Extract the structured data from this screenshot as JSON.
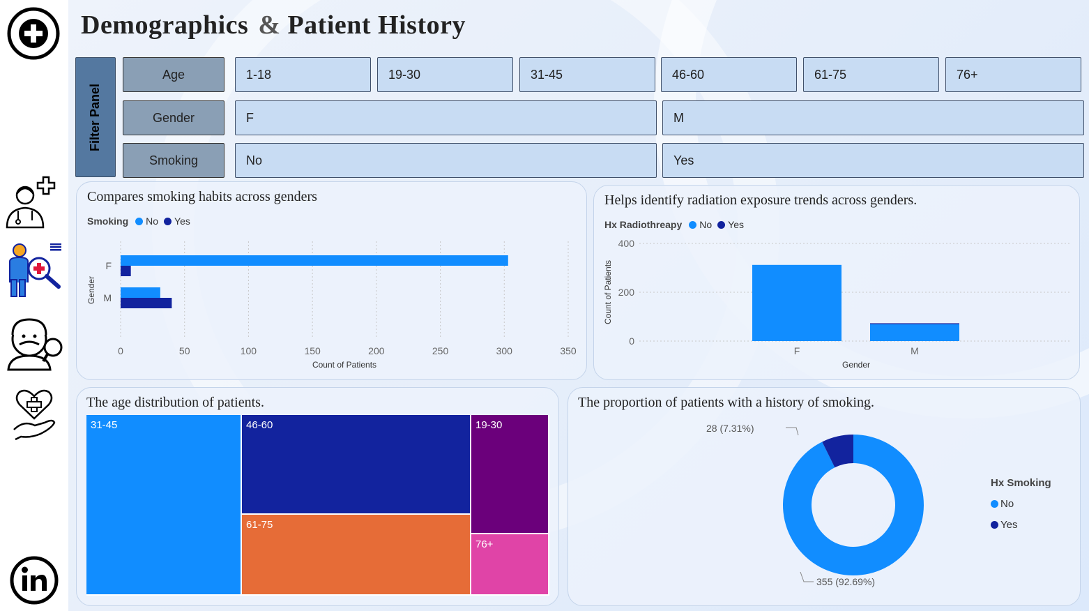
{
  "header": {
    "title_left": "Demographics",
    "title_amp": "&",
    "title_right": "Patient History"
  },
  "sidebar": {
    "icons": [
      "plus-circle-icon",
      "doctor-icon",
      "patient-search-icon",
      "elder-search-icon",
      "heart-hand-icon",
      "linkedin-icon"
    ]
  },
  "filters": {
    "panel_label": "Filter Panel",
    "age": {
      "label": "Age",
      "options": [
        "1-18",
        "19-30",
        "31-45",
        "46-60",
        "61-75",
        "76+"
      ]
    },
    "gender": {
      "label": "Gender",
      "options": [
        "F",
        "M"
      ]
    },
    "smoking": {
      "label": "Smoking",
      "options": [
        "No",
        "Yes"
      ]
    }
  },
  "colors": {
    "no": "#118dff",
    "yes": "#12239e",
    "orange": "#e66c37",
    "purple": "#6b007b",
    "pink": "#e044a7"
  },
  "smoking_gender": {
    "title": "Compares smoking habits across genders",
    "legend_title": "Smoking",
    "legend": [
      "No",
      "Yes"
    ],
    "chart_data": {
      "type": "bar",
      "orientation": "horizontal",
      "categories": [
        "F",
        "M"
      ],
      "series": [
        {
          "name": "No",
          "values": [
            303,
            31
          ]
        },
        {
          "name": "Yes",
          "values": [
            8,
            40
          ]
        }
      ],
      "xlabel": "Count of Patients",
      "ylabel": "Gender",
      "xlim": [
        0,
        350
      ],
      "xticks": [
        "0",
        "50",
        "100",
        "150",
        "200",
        "250",
        "300",
        "350"
      ]
    }
  },
  "radiation_gender": {
    "title": "Helps identify radiation exposure trends across genders.",
    "legend_title": "Hx Radiothreapy",
    "legend": [
      "No",
      "Yes"
    ],
    "chart_data": {
      "type": "bar",
      "stacked": true,
      "categories": [
        "F",
        "M"
      ],
      "series": [
        {
          "name": "No",
          "values": [
            312,
            69
          ]
        },
        {
          "name": "Yes",
          "values": [
            0,
            4
          ]
        }
      ],
      "xlabel": "Gender",
      "ylabel": "Count of Patients",
      "ylim": [
        0,
        400
      ],
      "yticks": [
        "0",
        "200",
        "400"
      ]
    }
  },
  "age_distribution": {
    "title": "The age distribution of patients.",
    "chart_data": {
      "type": "treemap",
      "categories": [
        "31-45",
        "46-60",
        "61-75",
        "19-30",
        "76+"
      ]
    }
  },
  "smoking_history": {
    "title": "The proportion of patients with a history of smoking.",
    "legend_title": "Hx Smoking",
    "legend": [
      "No",
      "Yes"
    ],
    "chart_data": {
      "type": "pie",
      "donut": true,
      "categories": [
        "No",
        "Yes"
      ],
      "values": [
        355,
        28
      ],
      "labels": [
        "355 (92.69%)",
        "28 (7.31%)"
      ]
    }
  }
}
